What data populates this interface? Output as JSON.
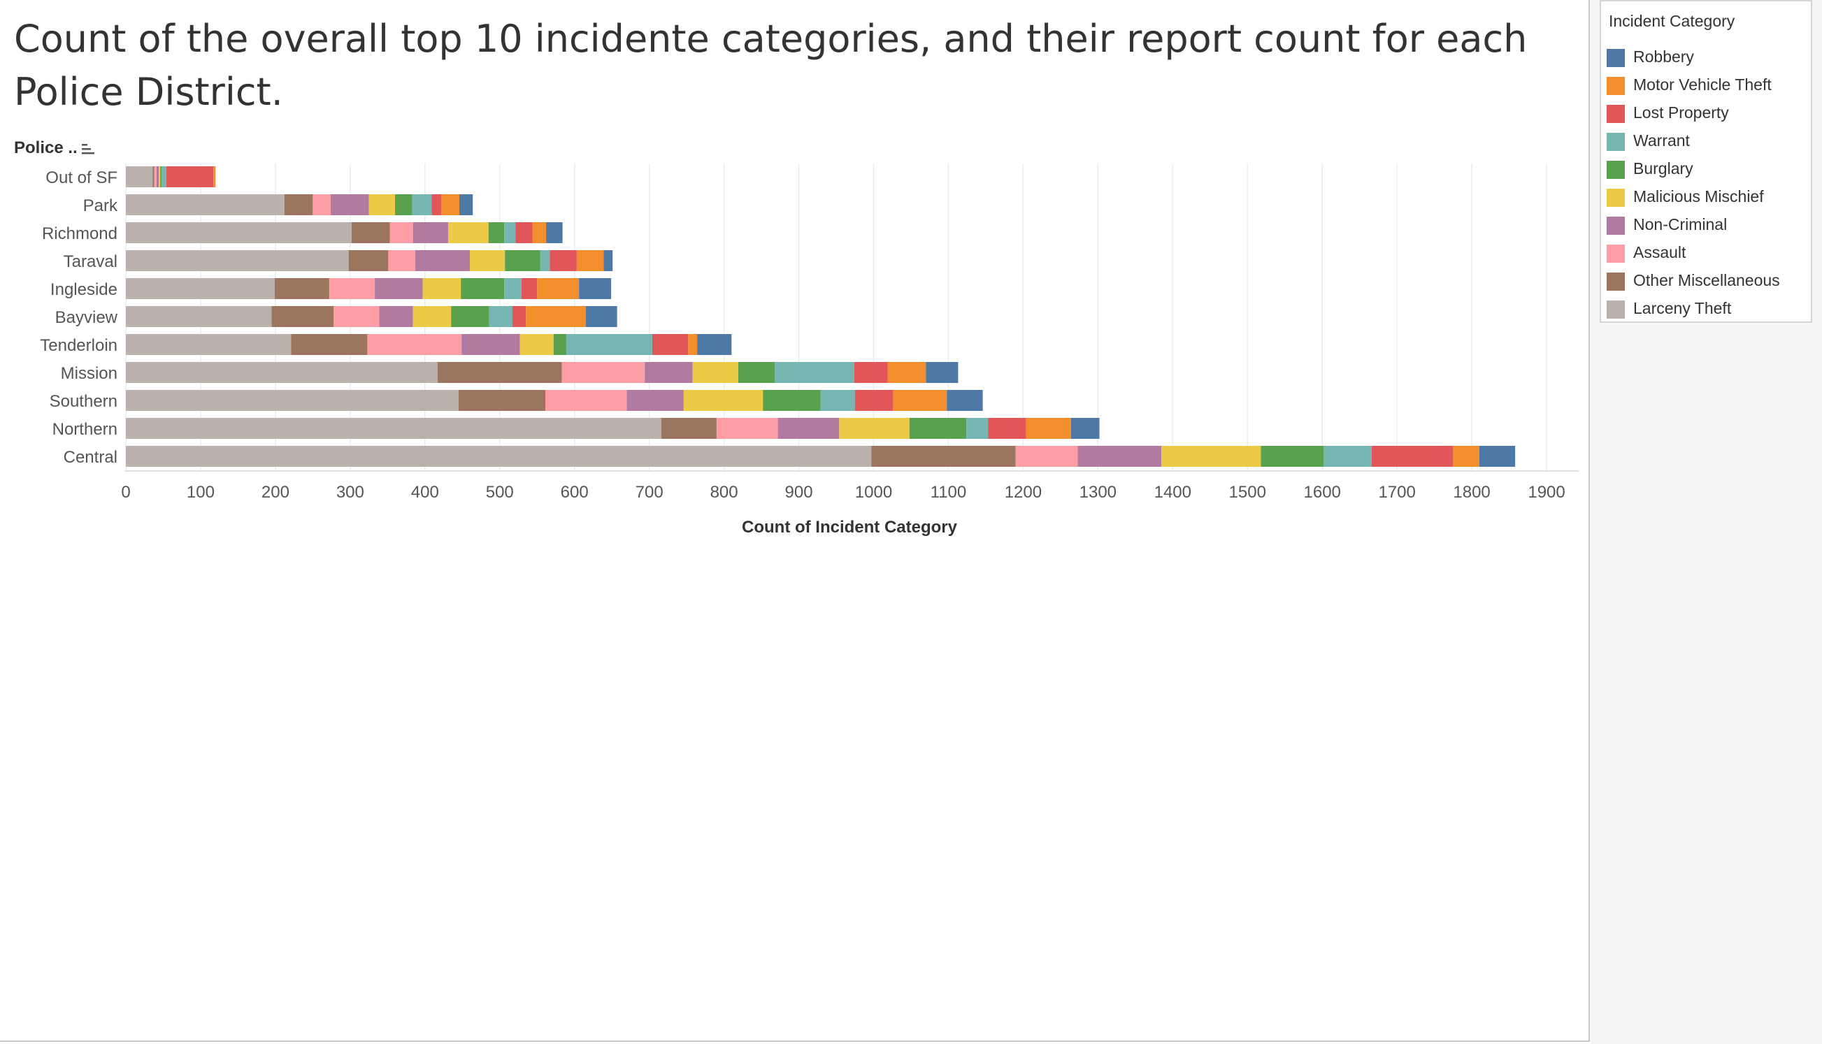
{
  "title": "Count of the overall top  10 incidente categories, and their report count for each Police District.",
  "row_header": "Police ..",
  "chart_data": {
    "type": "bar",
    "orientation": "horizontal",
    "stacked": true,
    "title": "Count of the overall top  10 incidente categories, and their report count for each Police District.",
    "xlabel": "Count of Incident Category",
    "ylabel": "Police ..",
    "xlim": [
      0,
      1950
    ],
    "xticks": [
      0,
      100,
      200,
      300,
      400,
      500,
      600,
      700,
      800,
      900,
      1000,
      1100,
      1200,
      1300,
      1400,
      1500,
      1600,
      1700,
      1800,
      1900
    ],
    "grid": "vertical",
    "legend_position": "right",
    "legend_title": "Incident Category",
    "categories": [
      "Out of SF",
      "Park",
      "Richmond",
      "Taraval",
      "Ingleside",
      "Bayview",
      "Tenderloin",
      "Mission",
      "Southern",
      "Northern",
      "Central"
    ],
    "series": [
      {
        "name": "Larceny Theft",
        "color": "#bab0ac",
        "values": [
          36,
          212,
          302,
          298,
          199,
          195,
          221,
          417,
          445,
          716,
          997
        ]
      },
      {
        "name": "Other Miscellaneous",
        "color": "#9c755f",
        "values": [
          2,
          38,
          51,
          53,
          73,
          83,
          102,
          166,
          116,
          74,
          193
        ]
      },
      {
        "name": "Assault",
        "color": "#ff9da7",
        "values": [
          3,
          24,
          31,
          36,
          61,
          61,
          126,
          111,
          109,
          82,
          83
        ]
      },
      {
        "name": "Non-Criminal",
        "color": "#b07aa1",
        "values": [
          3,
          51,
          47,
          73,
          64,
          45,
          78,
          64,
          76,
          82,
          112
        ]
      },
      {
        "name": "Malicious Mischief",
        "color": "#edc948",
        "values": [
          2,
          35,
          54,
          47,
          51,
          51,
          45,
          61,
          106,
          94,
          133
        ]
      },
      {
        "name": "Burglary",
        "color": "#59a14f",
        "values": [
          2,
          23,
          21,
          47,
          58,
          51,
          17,
          49,
          77,
          76,
          84
        ]
      },
      {
        "name": "Warrant",
        "color": "#76b7b2",
        "values": [
          6,
          26,
          15,
          13,
          23,
          31,
          115,
          106,
          46,
          29,
          64
        ]
      },
      {
        "name": "Lost Property",
        "color": "#e15759",
        "values": [
          63,
          13,
          23,
          36,
          21,
          18,
          48,
          45,
          51,
          51,
          109
        ]
      },
      {
        "name": "Motor Vehicle Theft",
        "color": "#f28e2b",
        "values": [
          3,
          24,
          18,
          36,
          56,
          80,
          12,
          51,
          72,
          60,
          35
        ]
      },
      {
        "name": "Robbery",
        "color": "#4e79a7",
        "values": [
          0,
          18,
          22,
          12,
          43,
          42,
          46,
          43,
          48,
          38,
          48
        ]
      }
    ]
  },
  "legend": {
    "title": "Incident Category",
    "items": [
      {
        "label": "Robbery",
        "color": "#4e79a7"
      },
      {
        "label": "Motor Vehicle Theft",
        "color": "#f28e2b"
      },
      {
        "label": "Lost Property",
        "color": "#e15759"
      },
      {
        "label": "Warrant",
        "color": "#76b7b2"
      },
      {
        "label": "Burglary",
        "color": "#59a14f"
      },
      {
        "label": "Malicious Mischief",
        "color": "#edc948"
      },
      {
        "label": "Non-Criminal",
        "color": "#b07aa1"
      },
      {
        "label": "Assault",
        "color": "#ff9da7"
      },
      {
        "label": "Other Miscellaneous",
        "color": "#9c755f"
      },
      {
        "label": "Larceny Theft",
        "color": "#bab0ac"
      }
    ]
  }
}
